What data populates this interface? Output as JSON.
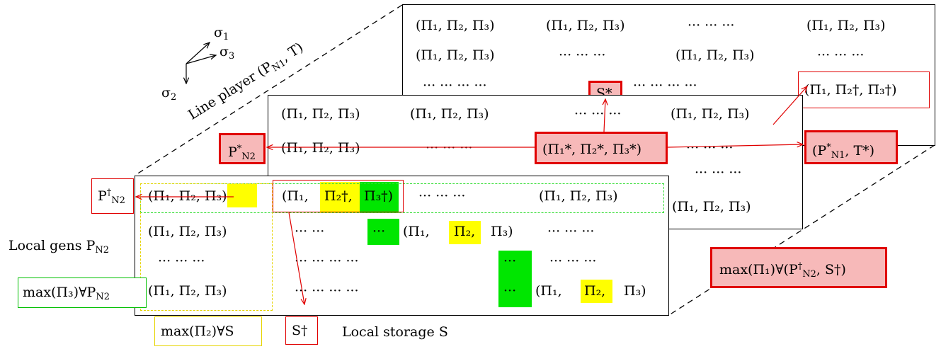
{
  "axes": {
    "sigma1": "σ",
    "sigma1_sub": "1",
    "sigma2": "σ",
    "sigma2_sub": "2",
    "sigma3": "σ",
    "sigma3_sub": "3"
  },
  "labels": {
    "line_player": "Line player (P",
    "line_player_sub": "N1",
    "line_player_tail": ", T)",
    "local_gens": "Local gens P",
    "local_gens_sub": "N2",
    "local_storage": "Local storage S"
  },
  "tuple_plain": "(Π₁,  Π₂,  Π₃)",
  "dots3": "···   ···   ···",
  "dots2": "···   ···",
  "dots1": "···",
  "back_panel": {
    "row1_a": "(Π₁,  Π₂,  Π₃)",
    "row1_b": "(Π₁,  Π₂,  Π₃)",
    "row1_c": "···   ···   ···",
    "row1_d": "(Π₁,  Π₂,  Π₃)",
    "row2_a": "(Π₁,  Π₂,  Π₃)",
    "row2_b": "···   ···   ···",
    "row2_c": "(Π₁,  Π₂,  Π₃)",
    "row2_d": "···   ···   ···",
    "row3_a": "···   ···   ···   ···",
    "row3_b": "···   ···   ···   ···",
    "row3_c": "···   ···   ···",
    "s_star": "S*",
    "dagger_tuple": "(Π₁,  Π₂†,  Π₃†)"
  },
  "mid_panel": {
    "row1_a": "(Π₁,  Π₂,  Π₃)",
    "row1_b": "(Π₁,  Π₂,  Π₃)",
    "row1_c": "···   ···   ···",
    "row1_d": "(Π₁,  Π₂,  Π₃)",
    "row2_a": "(Π₁,  Π₂,  Π₃)",
    "row2_b": "···   ···   ···",
    "row2_d": "···   ···   ···",
    "star_tuple": "(Π₁*,  Π₂*,  Π₃*)",
    "row3": "···   ···   ···",
    "row4": "(Π₁,  Π₂,  Π₃)",
    "row_extra": "···   ···   ···",
    "p_n2_star": "P",
    "p_n2_star_sub": "N2",
    "p_n1_star_t": "(P",
    "p_n1_star_t_sub": "N1",
    "p_n1_star_t_tail": ", T*)"
  },
  "front_panel": {
    "r1_a": "(Π₁,  Π₂,  Π₃)",
    "r1_b_open": "(Π₁,",
    "r1_b_p2": "Π₂†,",
    "r1_b_p3": "Π₃†)",
    "r1_c": "···   ···   ···",
    "r1_d": "(Π₁,  Π₂,  Π₃)",
    "r2_a": "(Π₁,  Π₂,  Π₃)",
    "r2_b": "···   ···",
    "r2_c": "···",
    "r2_d_open": "(Π₁,",
    "r2_d_p2": "Π₂,",
    "r2_d_close": "Π₃)",
    "r2_e": "···   ···   ···",
    "r3_a": "···   ···   ···",
    "r3_b": "···   ···   ···   ···",
    "r3_c": "···",
    "r3_d": "···   ···   ···",
    "r4_a": "(Π₁,  Π₂,  Π₃)",
    "r4_b": "···   ···   ···   ···",
    "r4_c": "···",
    "r4_d_open": "(Π₁,",
    "r4_d_p2": "Π₂,",
    "r4_d_close": "Π₃)"
  },
  "side_boxes": {
    "p_n2_dagger": "P",
    "p_n2_dagger_sub": "N2",
    "max_pi3": "max(Π₃)∀P",
    "max_pi3_sub": "N2",
    "max_pi2": "max(Π₂)∀S",
    "s_dagger": "S†",
    "max_pi1": "max(Π₁)∀(P",
    "max_pi1_sub": "N2",
    "max_pi1_tail": ", S†)"
  },
  "colors": {
    "red": "#e00000",
    "pink": "#f7b9b9",
    "yellow": "#ffff00",
    "green": "#00e600"
  }
}
